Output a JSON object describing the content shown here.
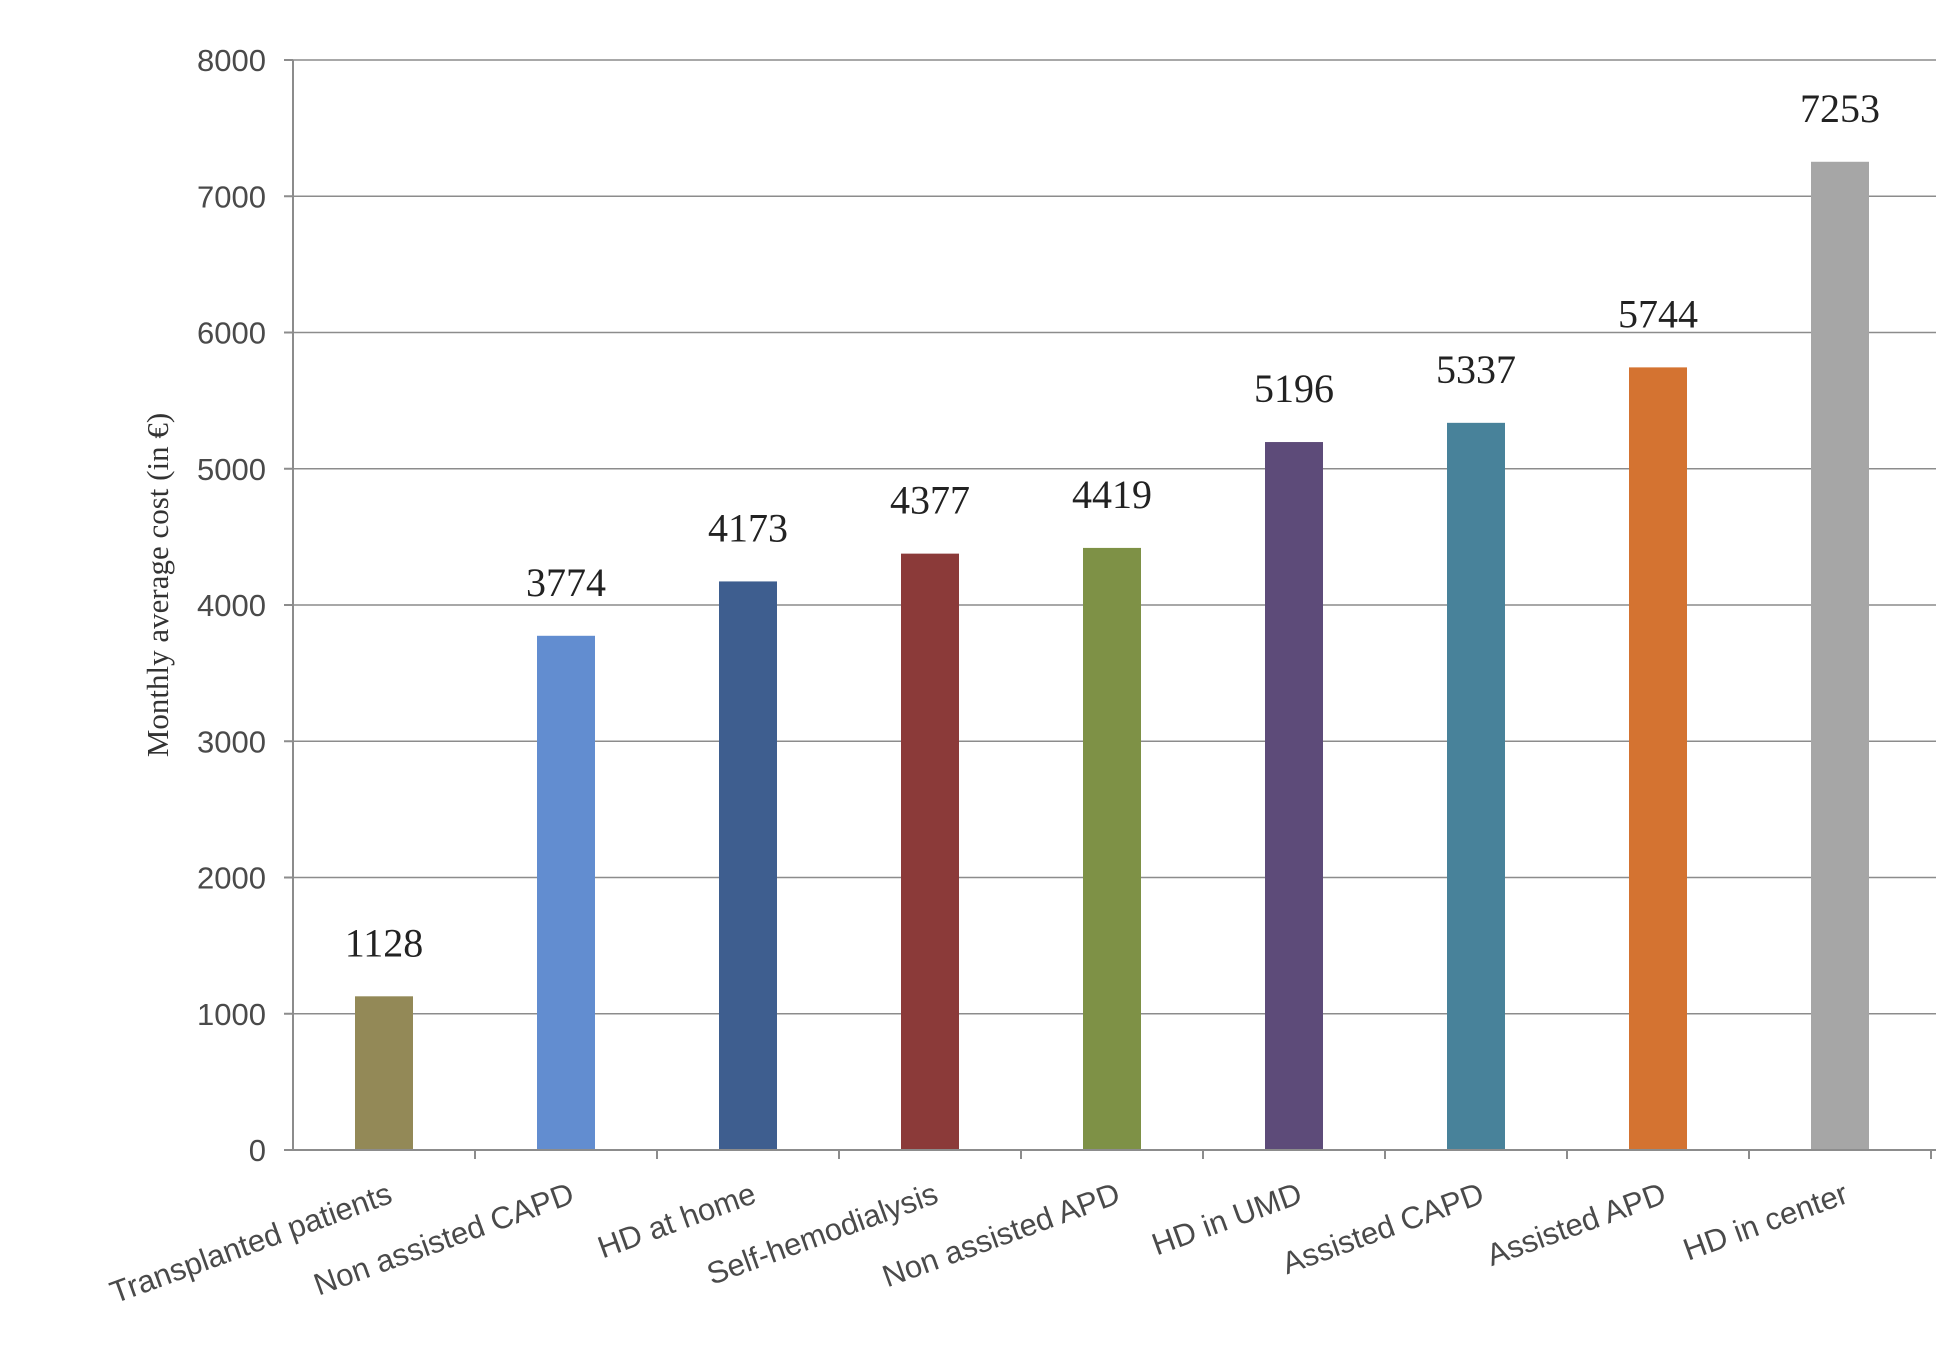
{
  "chart_data": {
    "type": "bar",
    "title": "",
    "xlabel": "",
    "ylabel": "Monthly average cost (in €)",
    "ylim": [
      0,
      8000
    ],
    "yticks": [
      0,
      1000,
      2000,
      3000,
      4000,
      5000,
      6000,
      7000,
      8000
    ],
    "grid": true,
    "categories": [
      "Transplanted patients",
      "Non assisted CAPD",
      "HD at home",
      "Self-hemodialysis",
      "Non assisted APD",
      "HD in UMD",
      "Assisted CAPD",
      "Assisted APD",
      "HD in center"
    ],
    "values": [
      1128,
      3774,
      4173,
      4377,
      4419,
      5196,
      5337,
      5744,
      7253
    ],
    "colors": [
      "#938957",
      "#628dd0",
      "#3e5e8f",
      "#8b3a39",
      "#7e9146",
      "#5d4b79",
      "#48829a",
      "#d47331",
      "#a6a6a6"
    ]
  }
}
